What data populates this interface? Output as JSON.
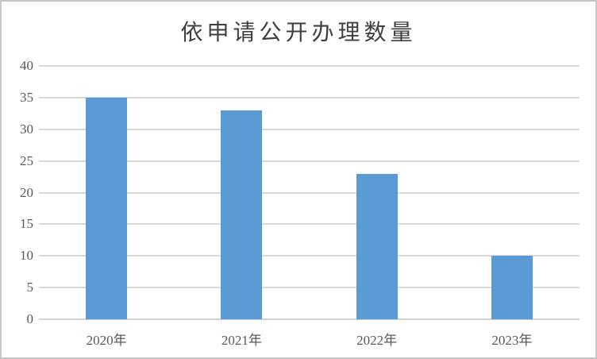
{
  "chart": {
    "title": "依申请公开办理数量",
    "colors": {
      "bar": "#5b9bd5",
      "gridline": "#d9d9d9",
      "axis_line": "#d2d2d2",
      "tick_label": "#595959",
      "title_text": "#404040",
      "frame_border": "#c6c6c6",
      "background": "#ffffff"
    }
  },
  "chart_data": {
    "type": "bar",
    "title": "依申请公开办理数量",
    "categories": [
      "2020年",
      "2021年",
      "2022年",
      "2023年"
    ],
    "values": [
      35,
      33,
      23,
      10
    ],
    "series": [
      {
        "name": "依申请公开办理数量",
        "values": [
          35,
          33,
          23,
          10
        ]
      }
    ],
    "xlabel": "",
    "ylabel": "",
    "ylim": [
      0,
      40
    ],
    "yticks": [
      0,
      5,
      10,
      15,
      20,
      25,
      30,
      35,
      40
    ],
    "grid": "horizontal",
    "legend_position": "none",
    "bar_color": "#5b9bd5"
  }
}
